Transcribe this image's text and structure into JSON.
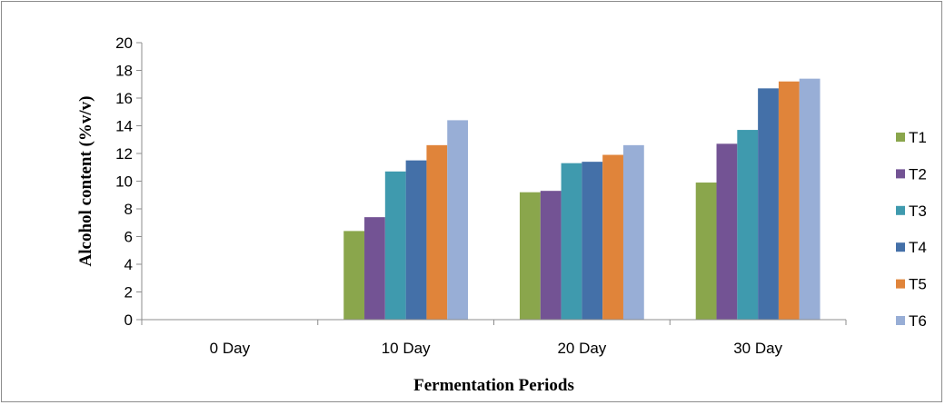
{
  "chart_data": {
    "type": "bar",
    "title": "",
    "xlabel": "Fermentation Periods",
    "ylabel": "Alcohol content (%v/v)",
    "ylim": [
      0,
      20
    ],
    "yticks": [
      0,
      2,
      4,
      6,
      8,
      10,
      12,
      14,
      16,
      18,
      20
    ],
    "categories": [
      "0 Day",
      "10 Day",
      "20 Day",
      "30 Day"
    ],
    "grid": false,
    "legend_position": "right",
    "series": [
      {
        "name": "T1",
        "color": "#8aa64c",
        "values": [
          0,
          6.4,
          9.2,
          9.9
        ]
      },
      {
        "name": "T2",
        "color": "#735394",
        "values": [
          0,
          7.4,
          9.3,
          12.7
        ]
      },
      {
        "name": "T3",
        "color": "#3f9aae",
        "values": [
          0,
          10.7,
          11.3,
          13.7
        ]
      },
      {
        "name": "T4",
        "color": "#4470a8",
        "values": [
          0,
          11.5,
          11.4,
          16.7
        ]
      },
      {
        "name": "T5",
        "color": "#e0843a",
        "values": [
          0,
          12.6,
          11.9,
          17.2
        ]
      },
      {
        "name": "T6",
        "color": "#98aed6",
        "values": [
          0,
          14.4,
          12.6,
          17.4
        ]
      }
    ]
  }
}
